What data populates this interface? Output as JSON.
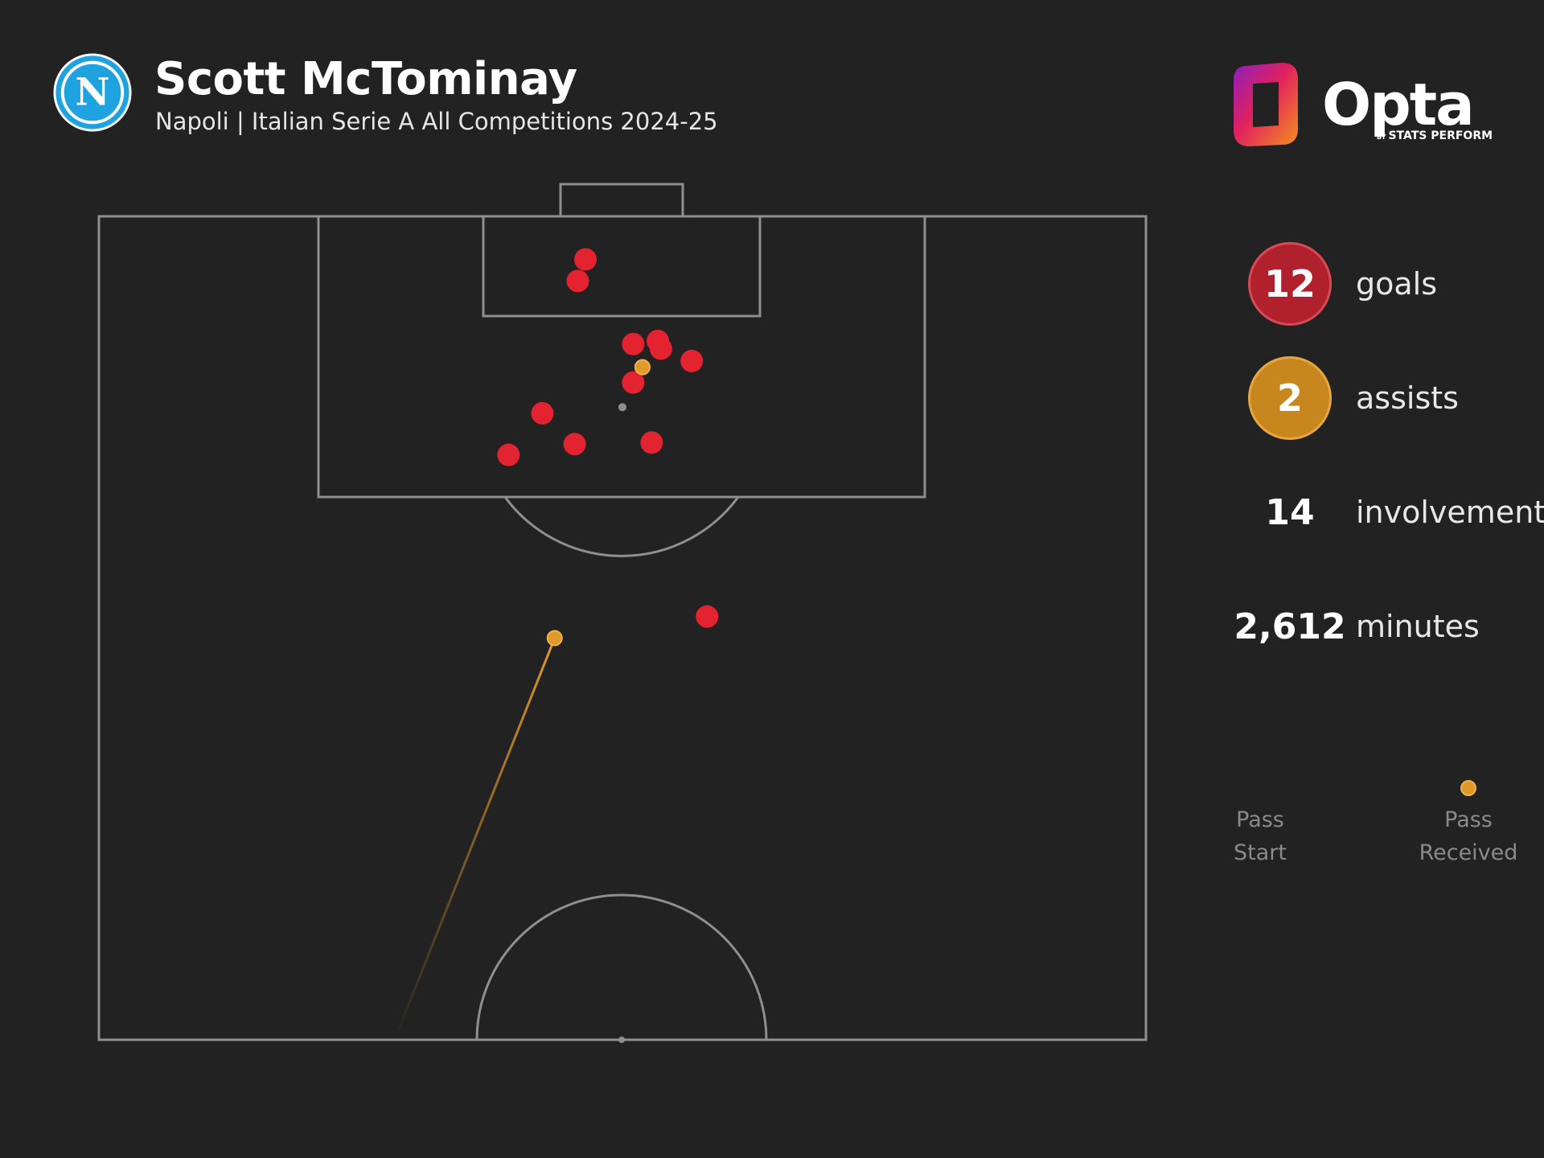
{
  "header": {
    "player_name": "Scott McTominay",
    "subtitle": "Napoli | Italian Serie A All Competitions 2024-25",
    "team_badge_letter": "N",
    "brand_name": "Opta",
    "brand_by": "BY",
    "brand_sub": "STATS PERFORM"
  },
  "stats": [
    {
      "value": "12",
      "label": "goals",
      "style": "goals"
    },
    {
      "value": "2",
      "label": "assists",
      "style": "assists"
    },
    {
      "value": "14",
      "label": "involvements",
      "style": "plain"
    },
    {
      "value": "2,612",
      "label": "minutes",
      "style": "plain"
    }
  ],
  "legend": {
    "start_label_1": "Pass",
    "start_label_2": "Start",
    "end_label_1": "Pass",
    "end_label_2": "Received"
  },
  "colors": {
    "background": "#222222",
    "pitch_lines": "#8f8f8f",
    "goal": "#e3232f",
    "assist": "#e09a2a",
    "badge": "#1ea3e0"
  },
  "chart_data": {
    "type": "scatter",
    "description_free": true,
    "pitch": {
      "x_range": [
        0,
        68
      ],
      "y_range": [
        0,
        53.5
      ],
      "y_origin": "goal-line"
    },
    "goals": [
      {
        "x": 31.6,
        "y": 2.8
      },
      {
        "x": 31.1,
        "y": 4.2
      },
      {
        "x": 34.7,
        "y": 8.3
      },
      {
        "x": 36.3,
        "y": 8.1
      },
      {
        "x": 36.5,
        "y": 8.6
      },
      {
        "x": 38.5,
        "y": 9.4
      },
      {
        "x": 34.7,
        "y": 10.8
      },
      {
        "x": 28.8,
        "y": 12.8
      },
      {
        "x": 30.9,
        "y": 14.8
      },
      {
        "x": 35.9,
        "y": 14.7
      },
      {
        "x": 26.6,
        "y": 15.5
      },
      {
        "x": 39.5,
        "y": 26.0
      }
    ],
    "assists": [
      {
        "start": {
          "x": 19.2,
          "y": 53.5
        },
        "end": {
          "x": 29.6,
          "y": 27.4
        }
      },
      {
        "start": {
          "x": 35.3,
          "y": 9.8
        },
        "end": {
          "x": 35.3,
          "y": 9.8
        }
      }
    ],
    "penalty_spot": {
      "x": 34.0,
      "y": 12.4
    }
  }
}
